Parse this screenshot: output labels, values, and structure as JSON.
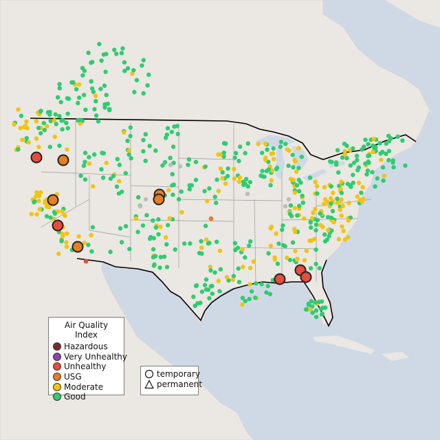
{
  "legend": {
    "title": "Air Quality Index",
    "categories": [
      {
        "label": "Hazardous",
        "color": "#7b2a2a"
      },
      {
        "label": "Very Unhealthy",
        "color": "#8e44ad"
      },
      {
        "label": "Unhealthy",
        "color": "#e74c3c"
      },
      {
        "label": "USG",
        "color": "#e67e22"
      },
      {
        "label": "Moderate",
        "color": "#f1c40f"
      },
      {
        "label": "Good",
        "color": "#2ecc71"
      }
    ],
    "monitor_types": [
      {
        "label": "temporary",
        "icon": "circle-icon"
      },
      {
        "label": "permanent",
        "icon": "triangle-icon"
      }
    ]
  },
  "colors": {
    "water": "#cfd9e6",
    "land": "#ebe7e3",
    "border": "#000000",
    "state_line": "#9a9a9a",
    "no_data": "#bdbdbd"
  }
}
